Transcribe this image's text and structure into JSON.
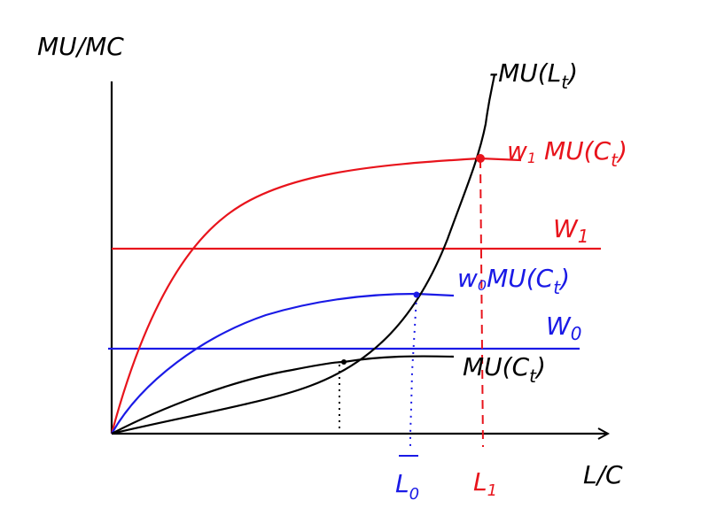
{
  "axes": {
    "y_label": "MU/MC",
    "x_label": "L/C"
  },
  "labels": {
    "mu_leisure": "-MU(L",
    "mu_leisure_sub": "t",
    "w1_mu_c": "w",
    "w1_mu_c_sub": "1",
    "w1_mu_c_tail": " MU(C",
    "w1_mu_c_tail_sub": "t",
    "w1_line": "W",
    "w1_line_sub": "1",
    "w0_mu_c": "w",
    "w0_mu_c_sub": "0",
    "w0_mu_c_tail": "MU(C",
    "w0_mu_c_tail_sub": "t",
    "w0_line": "W",
    "w0_line_sub": "0",
    "mu_c": "MU(C",
    "mu_c_sub": "t",
    "l0": "L",
    "l0_sub": "0",
    "l1": "L",
    "l1_sub": "1"
  },
  "colors": {
    "black": "#000000",
    "red": "#e8141c",
    "blue": "#1a1ae6"
  }
}
